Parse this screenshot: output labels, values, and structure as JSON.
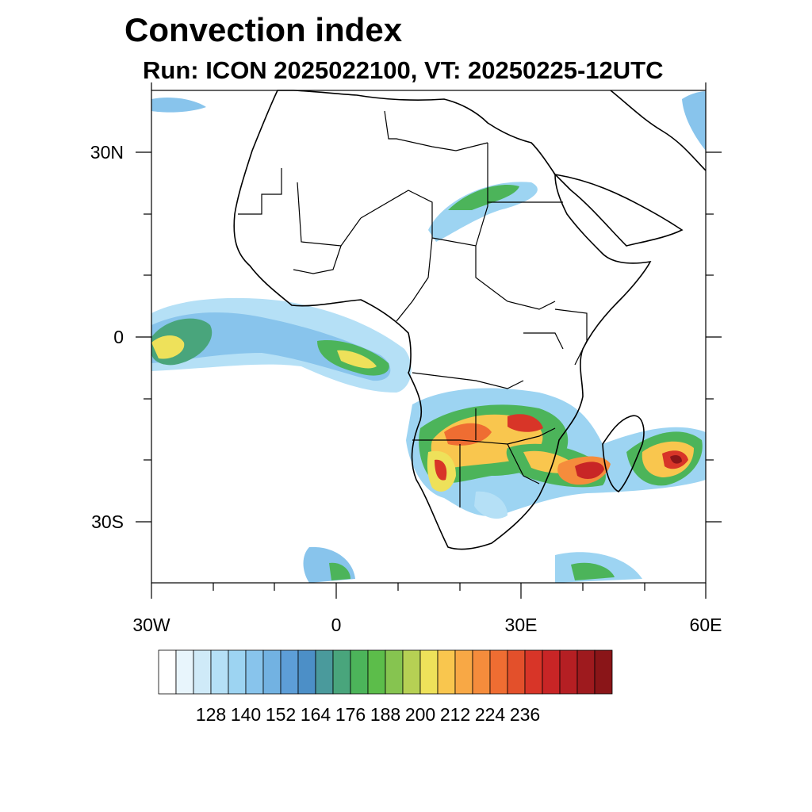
{
  "header": {
    "title": "Convection index",
    "subtitle": "Run: ICON 2025022100,  VT: 20250225-12UTC"
  },
  "map": {
    "lat_labels": [
      "30N",
      "0",
      "30S"
    ],
    "lon_labels": [
      "30W",
      "0",
      "30E",
      "60E"
    ],
    "extent": {
      "lon_min": -30,
      "lon_max": 60,
      "lat_min": -40,
      "lat_max": 40
    }
  },
  "colorbar": {
    "labels": [
      "128",
      "140",
      "152",
      "164",
      "176",
      "188",
      "200",
      "212",
      "224",
      "236"
    ],
    "colors": [
      "#ffffff",
      "#e8f5fc",
      "#cfeaf8",
      "#b5e0f6",
      "#9dd4f2",
      "#88c4ec",
      "#72b2e2",
      "#5d9ed8",
      "#4c8fc7",
      "#4a9a9c",
      "#49a57c",
      "#4cb45a",
      "#5cbd4a",
      "#86c450",
      "#b6d054",
      "#eee15a",
      "#f9c64e",
      "#f8a845",
      "#f58c3c",
      "#ef6d32",
      "#e3502b",
      "#d83528",
      "#c82526",
      "#b51f23",
      "#9e1a1e",
      "#8a1518"
    ]
  }
}
